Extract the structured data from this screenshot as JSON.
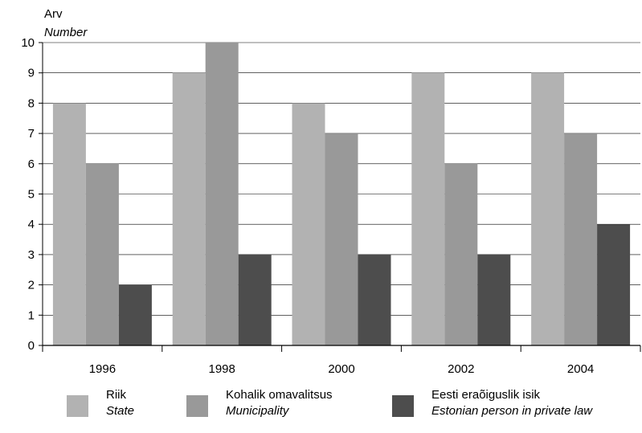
{
  "chart_data": {
    "type": "bar",
    "ylabel": "Arv",
    "ylabel_en": "Number",
    "categories": [
      "1996",
      "1998",
      "2000",
      "2002",
      "2004"
    ],
    "ylim": [
      0,
      10
    ],
    "yticks": [
      "0",
      "1",
      "2",
      "3",
      "4",
      "5",
      "6",
      "7",
      "8",
      "9",
      "10"
    ],
    "grid": true,
    "legend_position": "bottom",
    "series": [
      {
        "name": "Riik",
        "name_en": "State",
        "color": "#b2b2b2",
        "values": [
          8,
          9,
          8,
          9,
          9
        ]
      },
      {
        "name": "Kohalik omavalitsus",
        "name_en": "Municipality",
        "color": "#999999",
        "values": [
          6,
          10,
          7,
          6,
          7
        ]
      },
      {
        "name": "Eesti eraõiguslik isik",
        "name_en": "Estonian person in private law",
        "color": "#4d4d4d",
        "values": [
          2,
          3,
          3,
          3,
          4
        ]
      }
    ]
  }
}
